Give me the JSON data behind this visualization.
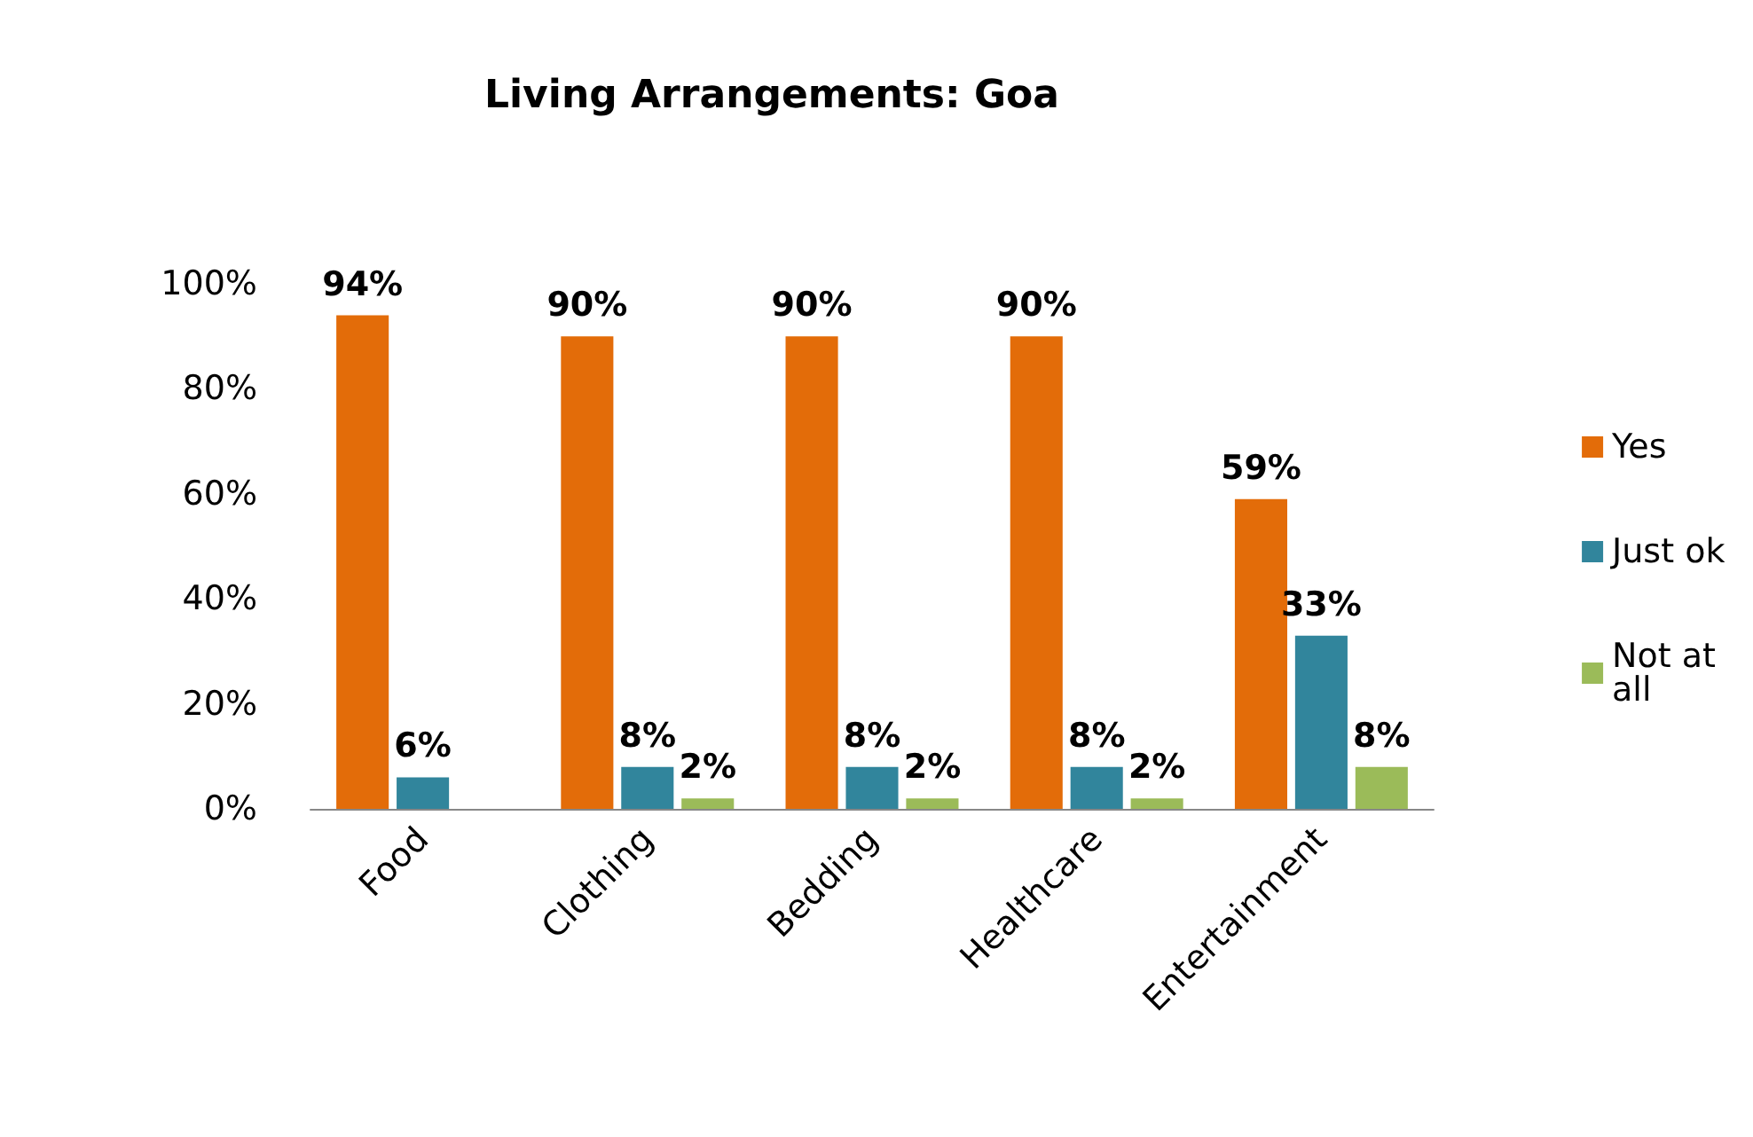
{
  "chart_data": {
    "type": "bar",
    "title": "Living Arrangements: Goa",
    "categories": [
      "Food",
      "Clothing",
      "Bedding",
      "Healthcare",
      "Entertainment"
    ],
    "series": [
      {
        "name": "Yes",
        "color": "#e36c09",
        "values": [
          94,
          90,
          90,
          90,
          59
        ],
        "value_labels": [
          "94%",
          "90%",
          "90%",
          "90%",
          "59%"
        ]
      },
      {
        "name": "Just ok",
        "color": "#31859c",
        "values": [
          6,
          8,
          8,
          8,
          33
        ],
        "value_labels": [
          "6%",
          "8%",
          "8%",
          "8%",
          "33%"
        ]
      },
      {
        "name": "Not at all",
        "color": "#9bbb59",
        "values": [
          null,
          2,
          2,
          2,
          8
        ],
        "value_labels": [
          null,
          "2%",
          "2%",
          "2%",
          "8%"
        ]
      }
    ],
    "ylim": [
      0,
      100
    ],
    "yticks": [
      {
        "value": 0,
        "label": "0%"
      },
      {
        "value": 20,
        "label": "20%"
      },
      {
        "value": 40,
        "label": "40%"
      },
      {
        "value": 60,
        "label": "60%"
      },
      {
        "value": 80,
        "label": "80%"
      },
      {
        "value": 100,
        "label": "100%"
      }
    ],
    "grid": false,
    "legend": "right"
  }
}
